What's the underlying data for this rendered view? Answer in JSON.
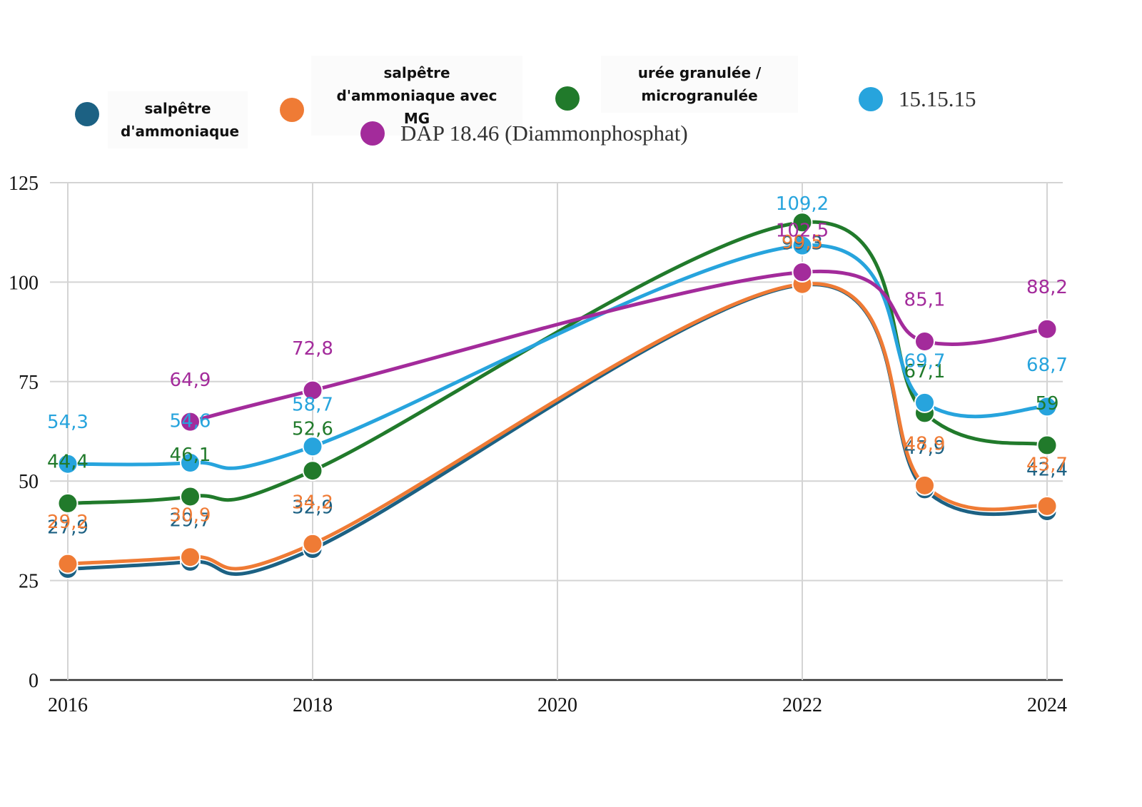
{
  "chart_data": {
    "type": "line",
    "title": "",
    "xlabel": "",
    "ylabel": "",
    "x": [
      2016,
      2017,
      2018,
      2022,
      2023,
      2024
    ],
    "x_ticks": [
      "2016",
      "2018",
      "2020",
      "2022",
      "2024"
    ],
    "y_ticks": [
      "0",
      "25",
      "50",
      "75",
      "100",
      "125"
    ],
    "xlim": [
      2016,
      2024
    ],
    "ylim": [
      0,
      125
    ],
    "grid": true,
    "legend_position": "top",
    "series": [
      {
        "name": "salpêtre d'ammoniaque",
        "color": "#1c6183",
        "values": [
          27.9,
          29.7,
          32.9,
          99.3,
          47.9,
          42.4
        ],
        "labels": [
          "27,9",
          "29,7",
          "32,9",
          "99,3",
          "47,9",
          "42,4"
        ]
      },
      {
        "name": "salpêtre d'ammoniaque avec MG",
        "color": "#ef7b35",
        "values": [
          29.2,
          30.9,
          34.2,
          99.5,
          48.9,
          43.7
        ],
        "labels": [
          "29,2",
          "30,9",
          "34,2",
          "99,5",
          "48,9",
          "43,7"
        ]
      },
      {
        "name": "urée granulée / microgranulée",
        "color": "#217a2b",
        "values": [
          44.4,
          46.1,
          52.6,
          115.0,
          67.1,
          59.0
        ],
        "labels": [
          "44,4",
          "46,1",
          "52,6",
          "",
          "67,1",
          "59"
        ]
      },
      {
        "name": "15.15.15",
        "color": "#27a4dd",
        "values": [
          54.3,
          54.6,
          58.7,
          109.2,
          69.7,
          68.7
        ],
        "labels": [
          "54,3",
          "54,6",
          "58,7",
          "109,2",
          "69,7",
          "68,7"
        ]
      },
      {
        "name": "DAP 18.46 (Diammonphosphat)",
        "color": "#a32b9b",
        "x": [
          2017,
          2018,
          2022,
          2023,
          2024
        ],
        "values": [
          64.9,
          72.8,
          102.5,
          85.1,
          88.2
        ],
        "labels": [
          "64,9",
          "72,8",
          "102,5",
          "85,1",
          "88,2"
        ]
      }
    ]
  }
}
